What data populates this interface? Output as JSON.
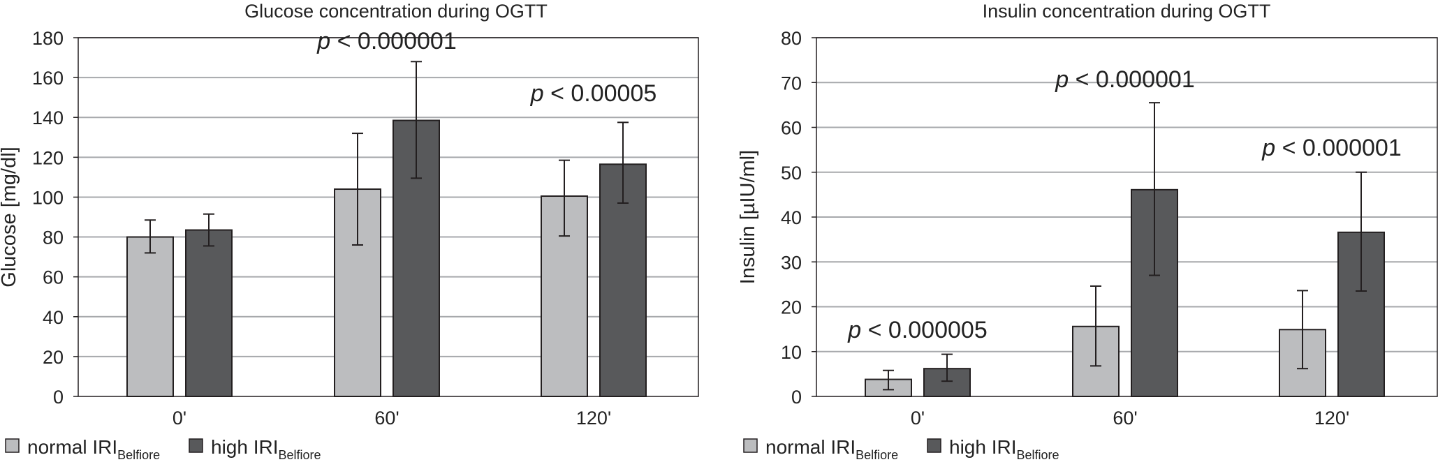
{
  "chart_data": [
    {
      "type": "bar",
      "title": "Glucose concentration during OGTT",
      "xlabel": "",
      "ylabel": "Glucose [mg/dl]",
      "ylim": [
        0,
        180
      ],
      "ytick_step": 20,
      "grid": true,
      "categories": [
        "0'",
        "60'",
        "120'"
      ],
      "series": [
        {
          "name": "normal IRI",
          "subscript": "Belfiore",
          "color": "#bcbdbf",
          "values": [
            80,
            104,
            100.5
          ],
          "error_low": [
            72,
            76,
            80.5
          ],
          "error_high": [
            88.5,
            132,
            118.5
          ]
        },
        {
          "name": "high IRI",
          "subscript": "Belfiore",
          "color": "#58595b",
          "values": [
            83.5,
            138.5,
            116.5
          ],
          "error_low": [
            75.5,
            109.5,
            97
          ],
          "error_high": [
            91.5,
            168,
            137.5
          ]
        }
      ],
      "annotations": [
        {
          "category": "60'",
          "p": "p",
          "text": " < 0.000001"
        },
        {
          "category": "120'",
          "p": "p",
          "text": " < 0.00005"
        }
      ],
      "legend_position": "bottom-left"
    },
    {
      "type": "bar",
      "title": "Insulin concentration during OGTT",
      "xlabel": "",
      "ylabel": "Insulin [µIU/ml]",
      "ylim": [
        0,
        80
      ],
      "ytick_step": 10,
      "grid": true,
      "categories": [
        "0'",
        "60'",
        "120'"
      ],
      "series": [
        {
          "name": "normal IRI",
          "subscript": "Belfiore",
          "color": "#bcbdbf",
          "values": [
            3.8,
            15.6,
            14.9
          ],
          "error_low": [
            1.5,
            6.8,
            6.2
          ],
          "error_high": [
            5.8,
            24.6,
            23.6
          ]
        },
        {
          "name": "high IRI",
          "subscript": "Belfiore",
          "color": "#58595b",
          "values": [
            6.2,
            46.1,
            36.6
          ],
          "error_low": [
            3.4,
            27,
            23.5
          ],
          "error_high": [
            9.4,
            65.5,
            50
          ]
        }
      ],
      "annotations": [
        {
          "category": "0'",
          "p": "p",
          "text": " < 0.000005"
        },
        {
          "category": "60'",
          "p": "p",
          "text": " < 0.000001"
        },
        {
          "category": "120'",
          "p": "p",
          "text": " < 0.000001"
        }
      ],
      "legend_position": "bottom-left"
    }
  ]
}
